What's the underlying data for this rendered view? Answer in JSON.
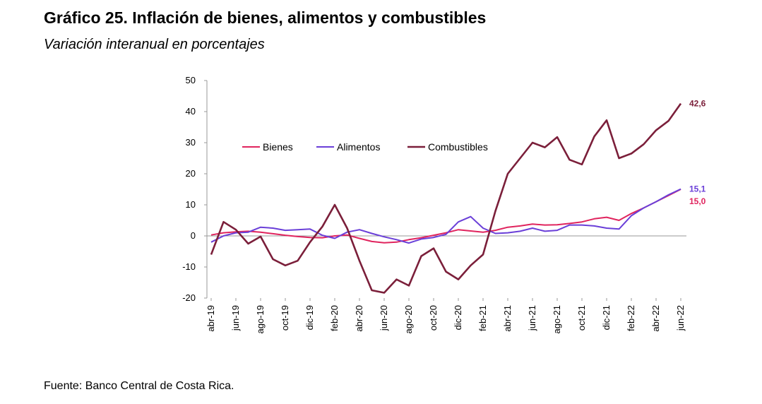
{
  "title": "Gráfico 25. Inflación de bienes, alimentos y combustibles",
  "subtitle": "Variación interanual en porcentajes",
  "source": "Fuente: Banco Central de Costa Rica.",
  "chart_data": {
    "type": "line",
    "title": "Gráfico 25. Inflación de bienes, alimentos y combustibles",
    "subtitle": "Variación interanual en porcentajes",
    "xlabel": "",
    "ylabel": "",
    "ylim": [
      -20,
      50
    ],
    "yticks": [
      -20,
      -10,
      0,
      10,
      20,
      30,
      40,
      50
    ],
    "x": [
      "abr-19",
      "may-19",
      "jun-19",
      "jul-19",
      "ago-19",
      "sep-19",
      "oct-19",
      "nov-19",
      "dic-19",
      "ene-20",
      "feb-20",
      "mar-20",
      "abr-20",
      "may-20",
      "jun-20",
      "jul-20",
      "ago-20",
      "sep-20",
      "oct-20",
      "nov-20",
      "dic-20",
      "ene-21",
      "feb-21",
      "mar-21",
      "abr-21",
      "may-21",
      "jun-21",
      "jul-21",
      "ago-21",
      "sep-21",
      "oct-21",
      "nov-21",
      "dic-21",
      "ene-22",
      "feb-22",
      "mar-22",
      "abr-22",
      "may-22",
      "jun-22"
    ],
    "x_tick_labels": [
      "abr-19",
      "jun-19",
      "ago-19",
      "oct-19",
      "dic-19",
      "feb-20",
      "abr-20",
      "jun-20",
      "ago-20",
      "oct-20",
      "dic-20",
      "feb-21",
      "abr-21",
      "jun-21",
      "ago-21",
      "oct-21",
      "dic-21",
      "feb-22",
      "abr-22",
      "jun-22"
    ],
    "legend_position": "upper-center",
    "series": [
      {
        "name": "Bienes",
        "color": "#e0245e",
        "values": [
          0.3,
          1.0,
          1.3,
          1.5,
          1.2,
          0.7,
          0.2,
          -0.2,
          -0.5,
          -0.6,
          0.0,
          0.3,
          -0.8,
          -1.8,
          -2.2,
          -2.0,
          -1.2,
          -0.6,
          0.2,
          1.0,
          2.0,
          1.6,
          1.2,
          1.8,
          2.8,
          3.2,
          3.8,
          3.5,
          3.6,
          4.0,
          4.5,
          5.5,
          6.0,
          5.0,
          7.2,
          9.0,
          11.0,
          13.0,
          15.0
        ]
      },
      {
        "name": "Alimentos",
        "color": "#6a3fd8",
        "values": [
          -2.0,
          0.0,
          1.0,
          1.2,
          2.8,
          2.5,
          1.8,
          2.0,
          2.2,
          0.2,
          -0.8,
          1.2,
          2.0,
          0.8,
          -0.3,
          -1.2,
          -2.3,
          -1.0,
          -0.5,
          0.5,
          4.5,
          6.2,
          2.5,
          0.8,
          1.0,
          1.5,
          2.5,
          1.5,
          1.8,
          3.5,
          3.5,
          3.2,
          2.5,
          2.2,
          6.5,
          9.0,
          11.0,
          13.2,
          15.1
        ]
      },
      {
        "name": "Combustibles",
        "color": "#7b1f3a",
        "values": [
          -6.0,
          4.5,
          2.0,
          -2.5,
          -0.2,
          -7.5,
          -9.5,
          -8.0,
          -2.0,
          3.0,
          10.0,
          2.5,
          -8.0,
          -17.5,
          -18.3,
          -14.0,
          -16.0,
          -6.5,
          -4.0,
          -11.5,
          -14.0,
          -9.5,
          -6.0,
          8.0,
          20.0,
          25.0,
          30.0,
          28.5,
          31.8,
          24.5,
          23.0,
          32.0,
          37.2,
          25.0,
          26.5,
          29.5,
          34.0,
          37.0,
          42.6
        ]
      }
    ],
    "end_labels": [
      {
        "series": "Combustibles",
        "text": "42,6",
        "color": "#7b1f3a"
      },
      {
        "series": "Alimentos",
        "text": "15,1",
        "color": "#6a3fd8"
      },
      {
        "series": "Bienes",
        "text": "15,0",
        "color": "#e0245e"
      }
    ]
  }
}
